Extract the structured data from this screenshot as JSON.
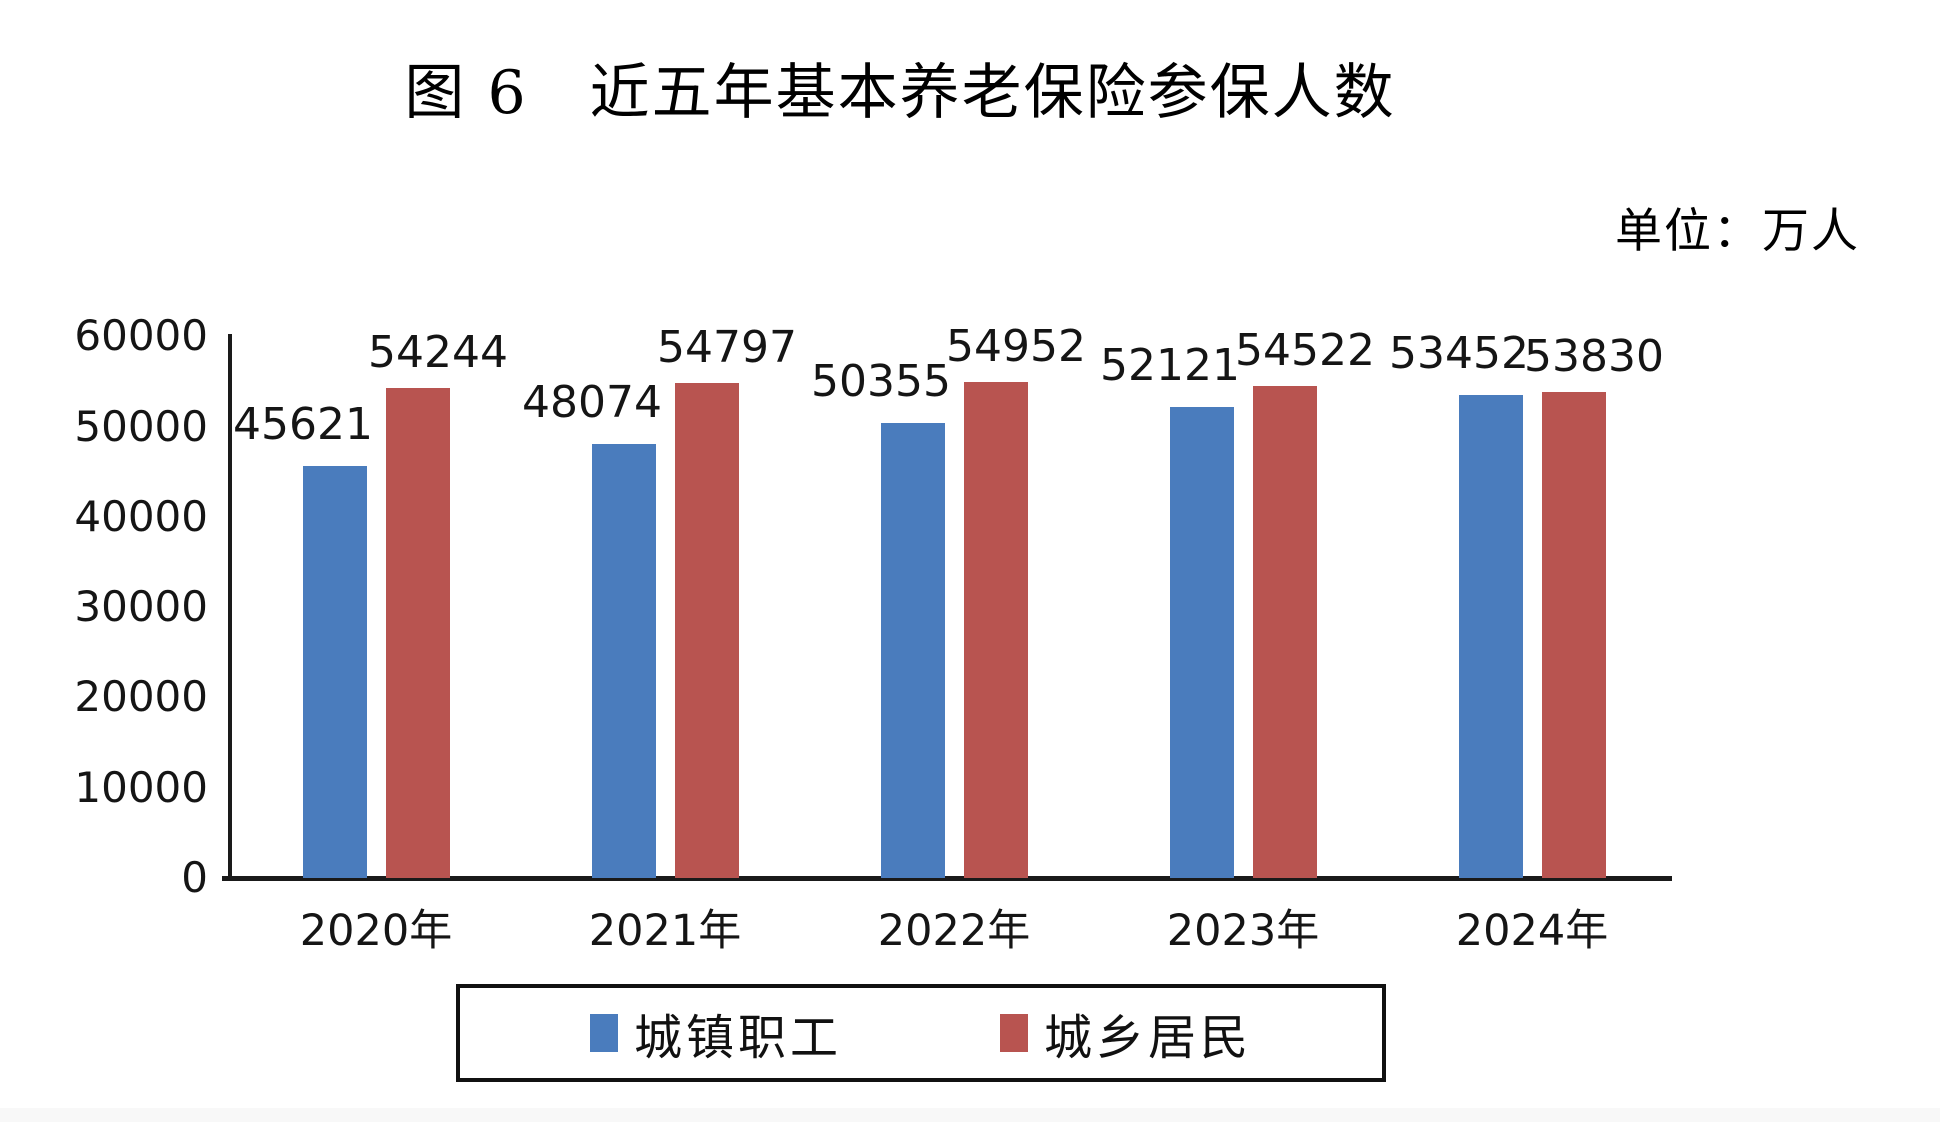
{
  "title": "图 6　近五年基本养老保险参保人数",
  "unit_label": "单位：万人",
  "chart_data": {
    "type": "bar",
    "categories": [
      "2020年",
      "2021年",
      "2022年",
      "2023年",
      "2024年"
    ],
    "series": [
      {
        "id": "urban-workers",
        "name": "城镇职工",
        "color": "#4a7cbd",
        "values": [
          45621,
          48074,
          50355,
          52121,
          53452
        ]
      },
      {
        "id": "urban-rural-residents",
        "name": "城乡居民",
        "color": "#b85450",
        "values": [
          54244,
          54797,
          54952,
          54522,
          53830
        ]
      }
    ],
    "title": "图 6　近五年基本养老保险参保人数",
    "xlabel": "",
    "ylabel": "单位：万人",
    "ylim": [
      0,
      60000
    ],
    "yticks": [
      0,
      10000,
      20000,
      30000,
      40000,
      50000,
      60000
    ],
    "grid": false,
    "data_labels": true,
    "legend_position": "bottom"
  },
  "legend": {
    "items": [
      {
        "label": "城镇职工",
        "color": "#4a7cbd"
      },
      {
        "label": "城乡居民",
        "color": "#b85450"
      }
    ]
  }
}
